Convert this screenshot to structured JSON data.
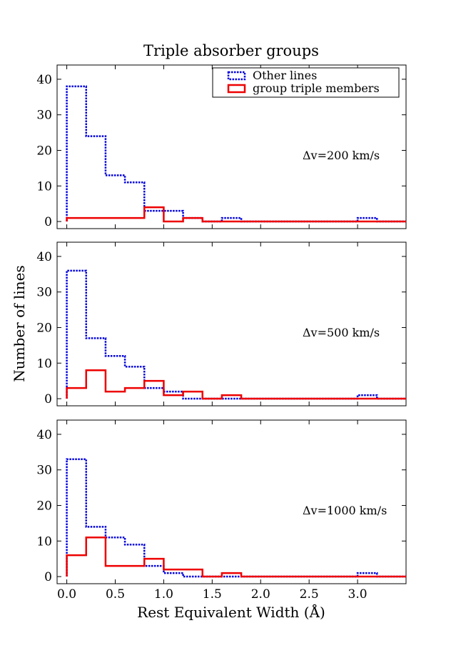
{
  "chart_data": {
    "type": "histogram-step",
    "title": "Triple absorber groups",
    "xlabel": "Rest Equivalent Width (Å)",
    "ylabel": "Number of lines",
    "xlim": [
      -0.1,
      3.5
    ],
    "ylim": [
      -2,
      44
    ],
    "x_ticks": [
      "0.0",
      "0.5",
      "1.0",
      "1.5",
      "2.0",
      "2.5",
      "3.0"
    ],
    "x_tick_values": [
      0,
      0.5,
      1.0,
      1.5,
      2.0,
      2.5,
      3.0
    ],
    "y_ticks": [
      "0",
      "10",
      "20",
      "30",
      "40"
    ],
    "y_tick_values": [
      0,
      10,
      20,
      30,
      40
    ],
    "bin_edges": [
      0.0,
      0.2,
      0.4,
      0.6,
      0.8,
      1.0,
      1.2,
      1.4,
      1.6,
      1.8,
      2.0,
      2.2,
      2.4,
      2.6,
      2.8,
      3.0,
      3.2,
      3.4
    ],
    "legend": {
      "placement": "top-right",
      "entries": [
        {
          "label": "Other lines",
          "color": "#0000dd",
          "style": "dotted"
        },
        {
          "label": "group triple members",
          "color": "#ee0000",
          "style": "solid"
        }
      ]
    },
    "panels": [
      {
        "label": "Δv=200 km/s",
        "series": [
          {
            "name": "Other lines",
            "values": [
              38,
              24,
              13,
              11,
              3,
              3,
              1,
              0,
              1,
              0,
              0,
              0,
              0,
              0,
              0,
              1,
              0
            ]
          },
          {
            "name": "group triple members",
            "values": [
              1,
              1,
              1,
              1,
              4,
              0,
              1,
              0,
              0,
              0,
              0,
              0,
              0,
              0,
              0,
              0,
              0
            ]
          }
        ]
      },
      {
        "label": "Δv=500 km/s",
        "series": [
          {
            "name": "Other lines",
            "values": [
              36,
              17,
              12,
              9,
              3,
              2,
              0,
              0,
              0,
              0,
              0,
              0,
              0,
              0,
              0,
              1,
              0
            ]
          },
          {
            "name": "group triple members",
            "values": [
              3,
              8,
              2,
              3,
              5,
              1,
              2,
              0,
              1,
              0,
              0,
              0,
              0,
              0,
              0,
              0,
              0
            ]
          }
        ]
      },
      {
        "label": "Δv=1000 km/s",
        "series": [
          {
            "name": "Other lines",
            "values": [
              33,
              14,
              11,
              9,
              3,
              1,
              0,
              0,
              0,
              0,
              0,
              0,
              0,
              0,
              0,
              1,
              0
            ]
          },
          {
            "name": "group triple members",
            "values": [
              6,
              11,
              3,
              3,
              5,
              2,
              2,
              0,
              1,
              0,
              0,
              0,
              0,
              0,
              0,
              0,
              0
            ]
          }
        ]
      }
    ]
  }
}
